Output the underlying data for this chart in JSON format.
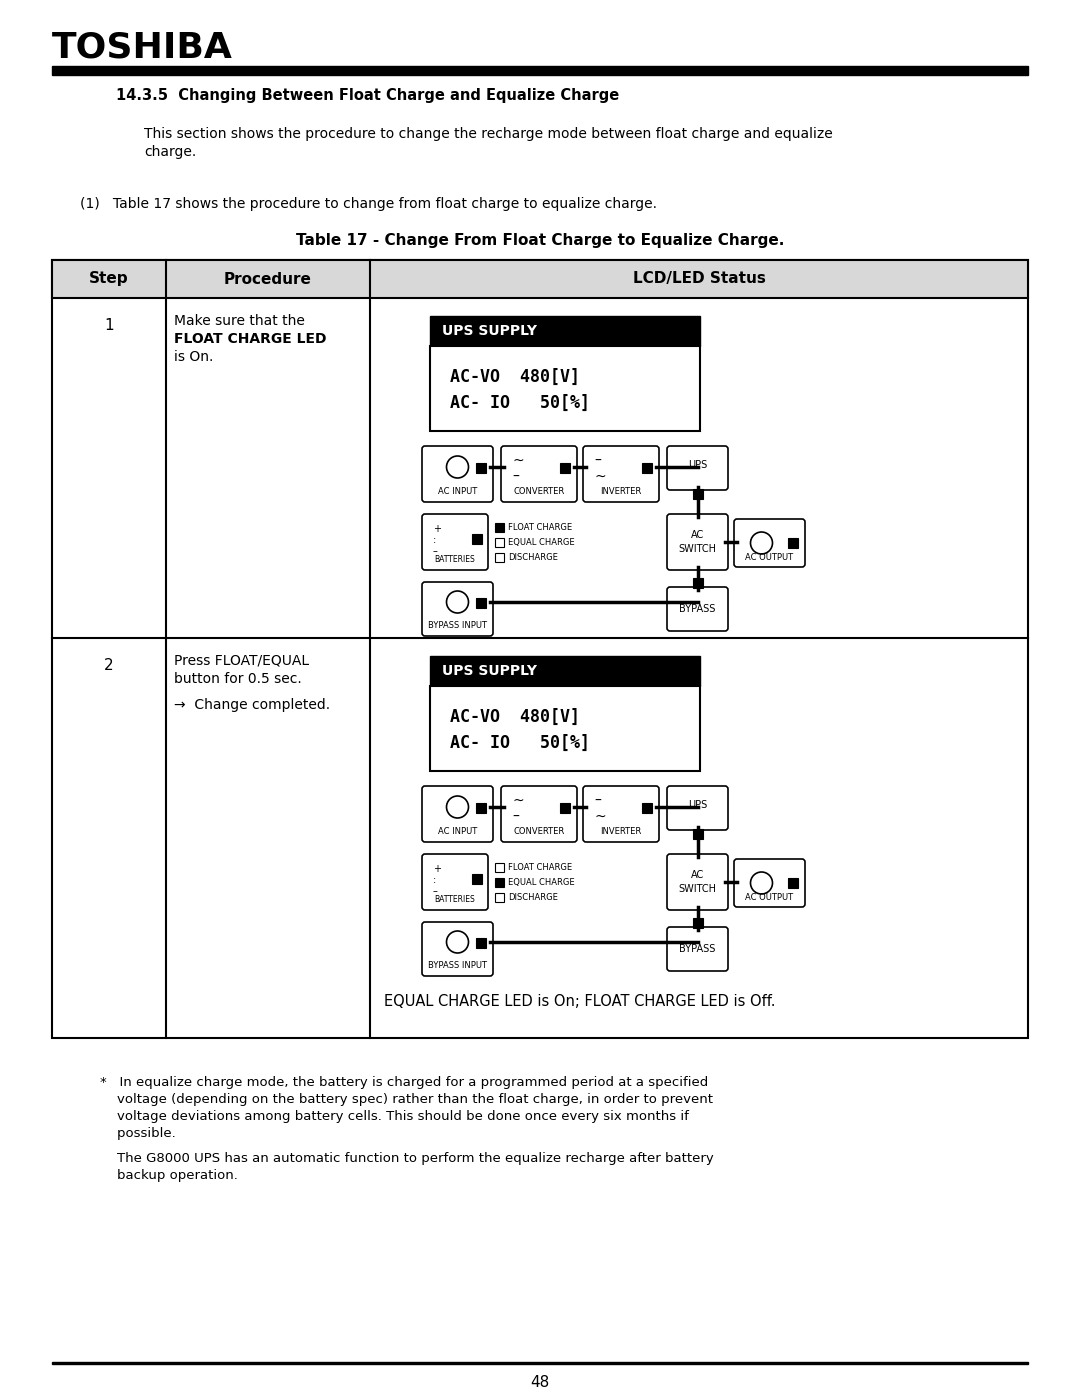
{
  "title_company": "TOSHIBA",
  "section_title": "14.3.5  Changing Between Float Charge and Equalize Charge",
  "intro_text": "This section shows the procedure to change the recharge mode between float charge and equalize\ncharge.",
  "table_intro": "(1)   Table 17 shows the procedure to change from float charge to equalize charge.",
  "table_title": "Table 17 - Change From Float Charge to Equalize Charge.",
  "col_headers": [
    "Step",
    "Procedure",
    "LCD/LED Status"
  ],
  "row1_step": "1",
  "row1_proc_line1": "Make sure that the",
  "row1_proc_line2": "FLOAT CHARGE LED",
  "row1_proc_line3": "is On.",
  "row2_step": "2",
  "row2_proc_line1": "Press FLOAT/EQUAL",
  "row2_proc_line2": "button for 0.5 sec.",
  "row2_proc_line3": "→  Change completed.",
  "row2_status_text": "EQUAL CHARGE LED is On; FLOAT CHARGE LED is Off.",
  "ups_supply_label": "UPS SUPPLY",
  "lcd_line1": "AC-VO  480[V]",
  "lcd_line2": "AC- IO   50[%]",
  "footnote_line1": "*   In equalize charge mode, the battery is charged for a programmed period at a specified",
  "footnote_line2": "    voltage (depending on the battery spec) rather than the float charge, in order to prevent",
  "footnote_line3": "    voltage deviations among battery cells. This should be done once every six months if",
  "footnote_line4": "    possible.",
  "footnote_line5": "    The G8000 UPS has an automatic function to perform the equalize recharge after battery",
  "footnote_line6": "    backup operation.",
  "page_number": "48",
  "bg_color": "#ffffff"
}
